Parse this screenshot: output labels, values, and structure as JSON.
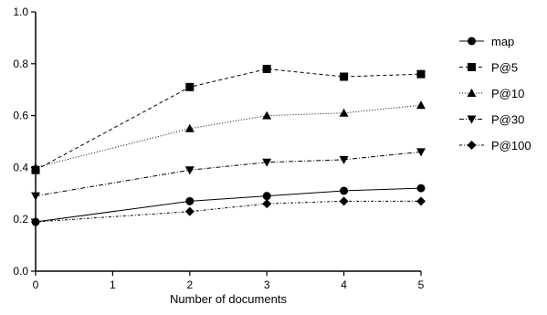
{
  "chart_data": {
    "type": "line",
    "title": "",
    "xlabel": "Number of documents",
    "ylabel": "",
    "x": [
      0,
      1,
      2,
      3,
      4,
      5
    ],
    "xlim": [
      0,
      5
    ],
    "ylim": [
      0,
      1.0
    ],
    "x_ticks": [
      "0",
      "1",
      "2",
      "3",
      "4",
      "5"
    ],
    "y_ticks": [
      "0.0",
      "0.2",
      "0.4",
      "0.6",
      "0.8",
      "1.0"
    ],
    "grid": false,
    "legend_position": "right",
    "series": [
      {
        "name": "map",
        "marker": "circle",
        "line_style": "solid",
        "points": [
          [
            0,
            0.19
          ],
          [
            2,
            0.27
          ],
          [
            3,
            0.29
          ],
          [
            4,
            0.31
          ],
          [
            5,
            0.32
          ]
        ]
      },
      {
        "name": "P@5",
        "marker": "square",
        "line_style": "dashed",
        "points": [
          [
            0,
            0.39
          ],
          [
            2,
            0.71
          ],
          [
            3,
            0.78
          ],
          [
            4,
            0.75
          ],
          [
            5,
            0.76
          ]
        ]
      },
      {
        "name": "P@10",
        "marker": "triangle-up",
        "line_style": "dotted",
        "points": [
          [
            0,
            0.4
          ],
          [
            2,
            0.55
          ],
          [
            3,
            0.6
          ],
          [
            4,
            0.61
          ],
          [
            5,
            0.64
          ]
        ]
      },
      {
        "name": "P@30",
        "marker": "triangle-down",
        "line_style": "dashdot",
        "points": [
          [
            0,
            0.29
          ],
          [
            2,
            0.39
          ],
          [
            3,
            0.42
          ],
          [
            4,
            0.43
          ],
          [
            5,
            0.46
          ]
        ]
      },
      {
        "name": "P@100",
        "marker": "diamond",
        "line_style": "dashdot-fine",
        "points": [
          [
            0,
            0.19
          ],
          [
            2,
            0.23
          ],
          [
            3,
            0.26
          ],
          [
            4,
            0.27
          ],
          [
            5,
            0.27
          ]
        ]
      }
    ]
  }
}
